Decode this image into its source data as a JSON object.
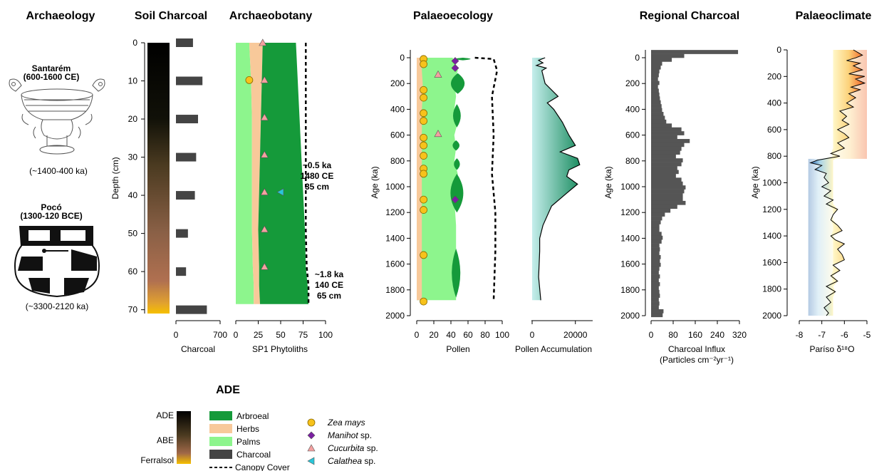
{
  "titles": {
    "archaeology": "Archaeology",
    "soil_charcoal": "Soil Charcoal",
    "archaeobotany": "Archaeobotany",
    "palaeoecology": "Palaeoecology",
    "regional_charcoal": "Regional Charcoal",
    "palaeoclimate": "Palaeoclimate"
  },
  "archaeology": {
    "santarem_name": "Santarém",
    "santarem_dates": "(600-1600 CE)",
    "santarem_age": "(~1400-400 ka)",
    "poco_name": "Pocó",
    "poco_dates": "(1300-120 BCE)",
    "poco_age": "(~3300-2120 ka)"
  },
  "legend": {
    "title": "ADE",
    "gradient_labels": [
      "ADE",
      "ABE",
      "Ferralsol"
    ],
    "fill_items": [
      {
        "label": "Arbroeal",
        "color": "#159a3a"
      },
      {
        "label": "Herbs",
        "color": "#f8c99a"
      },
      {
        "label": "Palms",
        "color": "#8df58d"
      },
      {
        "label": "Charcoal",
        "color": "#444444"
      }
    ],
    "line_item": "Canopy Cover",
    "markers": [
      {
        "label_italic": "Zea mays",
        "label_rest": "",
        "shape": "circle",
        "color": "#f7c21b"
      },
      {
        "label_italic": "Manihot",
        "label_rest": " sp.",
        "shape": "diamond",
        "color": "#7b1fa2"
      },
      {
        "label_italic": "Cucurbita",
        "label_rest": " sp.",
        "shape": "triangle-up",
        "color": "#f4a0a0"
      },
      {
        "label_italic": "Calathea",
        "label_rest": " sp.",
        "shape": "triangle-left",
        "color": "#29c6d9"
      }
    ]
  },
  "annotations": {
    "upper": [
      "~0.5 ka",
      "1480 CE",
      "35 cm"
    ],
    "lower": [
      "~1.8 ka",
      "140 CE",
      "65 cm"
    ]
  },
  "chart_data": [
    {
      "type": "bar",
      "panel": "Soil Charcoal",
      "ylabel": "Depth (cm)",
      "xlabel": "Charcoal",
      "ylim": [
        0,
        71
      ],
      "xlim": [
        0,
        700
      ],
      "yticks": [
        0,
        10,
        20,
        30,
        40,
        50,
        60,
        70
      ],
      "xticks": [
        0,
        700
      ],
      "depths": [
        0,
        10,
        20,
        30,
        40,
        50,
        60,
        70
      ],
      "values": [
        270,
        420,
        350,
        320,
        300,
        190,
        160,
        490
      ],
      "color": "#444444",
      "profile_colors": [
        "#000000",
        "#2a2a10",
        "#6a5030",
        "#9a6a4a",
        "#b07050",
        "#f0b000"
      ]
    },
    {
      "type": "area",
      "panel": "Archaeobotany",
      "xlabel": "SP1 Phytoliths",
      "ylim": [
        0,
        71
      ],
      "xlim": [
        0,
        100
      ],
      "xticks": [
        0,
        25,
        50,
        75,
        100
      ],
      "depth": [
        0,
        10,
        20,
        30,
        40,
        50,
        60,
        65,
        70
      ],
      "palms_upper": [
        15,
        17,
        18,
        18,
        18,
        18,
        19,
        20,
        20
      ],
      "herbs_upper": [
        30,
        29,
        28,
        27,
        26,
        25,
        26,
        26,
        27
      ],
      "arboreal_upper": [
        67,
        69,
        71,
        73,
        75,
        77,
        78,
        80,
        81
      ],
      "canopy_cover": [
        78,
        78,
        78,
        78,
        78,
        78,
        79,
        81,
        81
      ],
      "markers": [
        {
          "species": "Cucurbita",
          "depth": 0,
          "value": 30
        },
        {
          "species": "Cucurbita",
          "depth": 10,
          "value": 32
        },
        {
          "species": "Cucurbita",
          "depth": 20,
          "value": 32
        },
        {
          "species": "Cucurbita",
          "depth": 30,
          "value": 32
        },
        {
          "species": "Cucurbita",
          "depth": 40,
          "value": 32
        },
        {
          "species": "Cucurbita",
          "depth": 50,
          "value": 32
        },
        {
          "species": "Cucurbita",
          "depth": 60,
          "value": 32
        },
        {
          "species": "Zea mays",
          "depth": 10,
          "value": 15
        },
        {
          "species": "Calathea",
          "depth": 40,
          "value": 50
        }
      ]
    },
    {
      "type": "area",
      "panel": "Pollen",
      "xlabel": "Pollen",
      "ylabel": "Age (ka)",
      "ylim": [
        2000,
        0
      ],
      "xlim": [
        0,
        100
      ],
      "xticks": [
        0,
        20,
        40,
        60,
        80,
        100
      ],
      "yticks": [
        0,
        200,
        400,
        600,
        800,
        1000,
        1200,
        1400,
        1600,
        1800,
        2000
      ],
      "age": [
        0,
        100,
        200,
        300,
        400,
        500,
        600,
        700,
        800,
        900,
        1000,
        1100,
        1200,
        1300,
        1400,
        1500,
        1600,
        1700,
        1800,
        1880
      ],
      "herbs_upper": [
        6,
        6,
        7,
        7,
        6,
        6,
        6,
        6,
        6,
        6,
        6,
        6,
        6,
        6,
        6,
        6,
        6,
        6,
        6,
        6
      ],
      "palms_upper": [
        42,
        48,
        44,
        46,
        44,
        48,
        44,
        46,
        44,
        48,
        46,
        44,
        45,
        46,
        46,
        46,
        45,
        46,
        46,
        46
      ],
      "arboreal_lens": [
        {
          "age_top": 0,
          "age_bottom": 20,
          "left": 40,
          "right": 68
        },
        {
          "age_top": 120,
          "age_bottom": 280,
          "left": 36,
          "right": 60
        },
        {
          "age_top": 360,
          "age_bottom": 540,
          "left": 42,
          "right": 52
        },
        {
          "age_top": 640,
          "age_bottom": 720,
          "left": 42,
          "right": 50
        },
        {
          "age_top": 780,
          "age_bottom": 870,
          "left": 44,
          "right": 50
        },
        {
          "age_top": 900,
          "age_bottom": 1200,
          "left": 36,
          "right": 58
        },
        {
          "age_top": 1480,
          "age_bottom": 1860,
          "left": 40,
          "right": 52
        }
      ],
      "canopy_cover": [
        {
          "age": 0,
          "value": 68
        },
        {
          "age": 10,
          "value": 90
        },
        {
          "age": 100,
          "value": 94
        },
        {
          "age": 300,
          "value": 88
        },
        {
          "age": 600,
          "value": 90
        },
        {
          "age": 900,
          "value": 88
        },
        {
          "age": 1200,
          "value": 92
        },
        {
          "age": 1500,
          "value": 92
        },
        {
          "age": 1880,
          "value": 90
        }
      ],
      "markers": [
        {
          "species": "Zea mays",
          "age": 10,
          "value": 8
        },
        {
          "species": "Zea mays",
          "age": 50,
          "value": 8
        },
        {
          "species": "Zea mays",
          "age": 250,
          "value": 8
        },
        {
          "species": "Zea mays",
          "age": 310,
          "value": 8
        },
        {
          "species": "Zea mays",
          "age": 430,
          "value": 8
        },
        {
          "species": "Zea mays",
          "age": 490,
          "value": 8
        },
        {
          "species": "Zea mays",
          "age": 620,
          "value": 8
        },
        {
          "species": "Zea mays",
          "age": 680,
          "value": 8
        },
        {
          "species": "Zea mays",
          "age": 760,
          "value": 8
        },
        {
          "species": "Zea mays",
          "age": 860,
          "value": 8
        },
        {
          "species": "Zea mays",
          "age": 900,
          "value": 8
        },
        {
          "species": "Zea mays",
          "age": 1100,
          "value": 8
        },
        {
          "species": "Zea mays",
          "age": 1180,
          "value": 8
        },
        {
          "species": "Zea mays",
          "age": 1530,
          "value": 8
        },
        {
          "species": "Zea mays",
          "age": 1890,
          "value": 8
        },
        {
          "species": "Manihot",
          "age": 25,
          "value": 45
        },
        {
          "species": "Manihot",
          "age": 80,
          "value": 45
        },
        {
          "species": "Manihot",
          "age": 1100,
          "value": 45
        },
        {
          "species": "Cucurbita",
          "age": 130,
          "value": 25
        },
        {
          "species": "Cucurbita",
          "age": 590,
          "value": 25
        }
      ]
    },
    {
      "type": "area",
      "panel": "Pollen Accumulation",
      "xlabel": "Pollen Accumulation",
      "ylim": [
        2000,
        0
      ],
      "xlim": [
        0,
        28000
      ],
      "xticks": [
        0,
        20000
      ],
      "age": [
        0,
        20,
        40,
        60,
        80,
        100,
        200,
        300,
        350,
        400,
        500,
        600,
        680,
        730,
        780,
        830,
        870,
        920,
        980,
        1050,
        1150,
        1300,
        1400,
        1500,
        1700,
        1880
      ],
      "values": [
        6000,
        3000,
        5000,
        2000,
        6500,
        4500,
        6000,
        12000,
        7000,
        10000,
        14000,
        17000,
        20000,
        13000,
        21000,
        22000,
        17000,
        16000,
        21000,
        16000,
        9000,
        5000,
        3500,
        3500,
        3000,
        4000
      ]
    },
    {
      "type": "bar",
      "panel": "Regional Charcoal",
      "xlabel": "Charcoal Influx",
      "xlabel2": "(Particles cm⁻²yr⁻¹)",
      "ylabel": "Age (ka)",
      "ylim": [
        2000,
        -70
      ],
      "xlim": [
        0,
        320
      ],
      "xticks": [
        0,
        80,
        160,
        240,
        320
      ],
      "yticks": [
        0,
        200,
        400,
        600,
        800,
        1000,
        1200,
        1400,
        1600,
        1800,
        2000
      ],
      "bin_ages": [
        -60,
        -30,
        0,
        30,
        60,
        90,
        120,
        150,
        180,
        210,
        240,
        270,
        300,
        330,
        360,
        390,
        420,
        450,
        480,
        510,
        540,
        570,
        600,
        630,
        660,
        690,
        720,
        750,
        780,
        810,
        840,
        870,
        900,
        930,
        960,
        990,
        1020,
        1050,
        1080,
        1110,
        1140,
        1170,
        1200,
        1230,
        1260,
        1290,
        1320,
        1350,
        1380,
        1410,
        1440,
        1470,
        1500,
        1530,
        1560,
        1590,
        1620,
        1650,
        1680,
        1710,
        1740,
        1770,
        1800,
        1830,
        1860,
        1890,
        1920,
        1950,
        1980
      ],
      "values": [
        315,
        120,
        75,
        40,
        35,
        30,
        28,
        25,
        30,
        25,
        28,
        30,
        32,
        35,
        38,
        40,
        45,
        50,
        55,
        75,
        110,
        120,
        95,
        140,
        120,
        110,
        105,
        90,
        115,
        110,
        95,
        100,
        90,
        110,
        115,
        125,
        120,
        115,
        115,
        125,
        95,
        70,
        50,
        40,
        35,
        30,
        30,
        38,
        42,
        38,
        30,
        32,
        30,
        35,
        32,
        35,
        30,
        28,
        32,
        28,
        32,
        28,
        30,
        32,
        28,
        30,
        28,
        45,
        42
      ],
      "color": "#555555"
    },
    {
      "type": "line",
      "panel": "Palaeoclimate",
      "xlabel": "Paríso δ¹⁸O",
      "ylabel": "Age (ka)",
      "ylim": [
        2000,
        0
      ],
      "xlim": [
        -8,
        -5
      ],
      "xticks": [
        -8,
        -7,
        -6,
        -5
      ],
      "yticks": [
        0,
        200,
        400,
        600,
        800,
        1000,
        1200,
        1400,
        1600,
        1800,
        2000
      ],
      "age": [
        0,
        20,
        40,
        60,
        80,
        100,
        120,
        150,
        180,
        200,
        220,
        250,
        280,
        300,
        330,
        360,
        400,
        430,
        460,
        500,
        530,
        560,
        600,
        630,
        660,
        700,
        740,
        780,
        800,
        830,
        850,
        870,
        900,
        930,
        960,
        1000,
        1030,
        1060,
        1100,
        1130,
        1160,
        1200,
        1240,
        1280,
        1320,
        1360,
        1400,
        1430,
        1460,
        1500,
        1540,
        1580,
        1620,
        1660,
        1700,
        1740,
        1780,
        1820,
        1860,
        1900,
        1940,
        1980,
        2000
      ],
      "values": [
        -5.6,
        -5.4,
        -5.2,
        -5.5,
        -5.9,
        -5.3,
        -5.6,
        -5.2,
        -5.8,
        -5.1,
        -5.5,
        -5.1,
        -5.7,
        -5.3,
        -5.8,
        -5.5,
        -5.9,
        -5.6,
        -6.2,
        -5.9,
        -6.1,
        -5.8,
        -6.3,
        -6.0,
        -5.8,
        -6.3,
        -6.0,
        -6.6,
        -6.2,
        -7.2,
        -7.5,
        -7.0,
        -7.3,
        -6.8,
        -6.9,
        -6.7,
        -7.0,
        -6.6,
        -6.9,
        -6.5,
        -6.8,
        -6.3,
        -6.5,
        -6.6,
        -6.3,
        -6.1,
        -6.6,
        -6.4,
        -6.0,
        -6.3,
        -6.1,
        -6.0,
        -6.5,
        -6.2,
        -6.6,
        -6.3,
        -6.8,
        -6.4,
        -6.8,
        -6.6,
        -6.9,
        -6.7,
        -6.8
      ],
      "mean": -6.5,
      "warm_colors": [
        "#fff7c0",
        "#f06020"
      ],
      "cool_colors": [
        "#fff7c0",
        "#2a78c0"
      ]
    }
  ]
}
